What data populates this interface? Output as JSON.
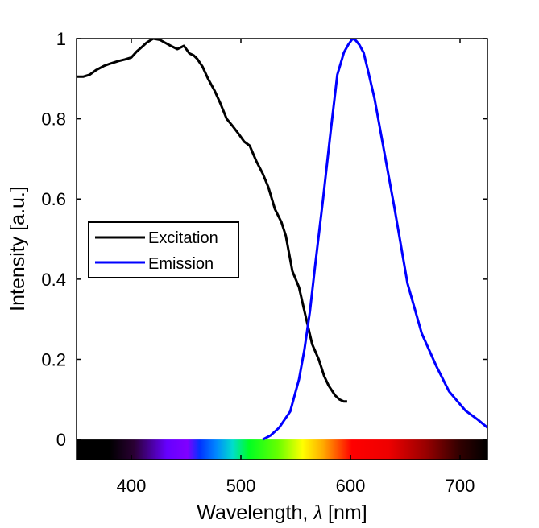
{
  "chart_data": {
    "type": "line",
    "title": "",
    "xlabel_main": "Wavelength, ",
    "xlabel_symbol": "λ",
    "xlabel_unit": " [nm]",
    "ylabel": "Intensity [a.u.]",
    "xlim": [
      350,
      725
    ],
    "ylim": [
      -0.05,
      1
    ],
    "xticks": [
      400,
      500,
      600,
      700
    ],
    "yticks": [
      0,
      0.2,
      0.4,
      0.6,
      0.8,
      1
    ],
    "ytick_labels": [
      "0",
      "0.2",
      "0.4",
      "0.6",
      "0.8",
      "1"
    ],
    "spectrum_band": {
      "ymin": -0.05,
      "ymax": 0.0
    },
    "legend": {
      "position": "middle-left"
    },
    "series": [
      {
        "name": "Excitation",
        "color": "#000000",
        "x": [
          350,
          356,
          362,
          368,
          375,
          381,
          388,
          394,
          400,
          405,
          410,
          414,
          420,
          426,
          430,
          436,
          442,
          448,
          453,
          457,
          460,
          465,
          470,
          476,
          481,
          487,
          493,
          498,
          503,
          508,
          514,
          520,
          525,
          531,
          537,
          541,
          547,
          553,
          558,
          565,
          571,
          576,
          580,
          586,
          590,
          594,
          597
        ],
        "values": [
          0.905,
          0.905,
          0.91,
          0.922,
          0.932,
          0.938,
          0.944,
          0.948,
          0.953,
          0.968,
          0.98,
          0.99,
          1.0,
          0.997,
          0.991,
          0.982,
          0.974,
          0.982,
          0.963,
          0.958,
          0.95,
          0.93,
          0.9,
          0.87,
          0.84,
          0.8,
          0.78,
          0.762,
          0.743,
          0.733,
          0.695,
          0.663,
          0.63,
          0.575,
          0.542,
          0.508,
          0.42,
          0.38,
          0.32,
          0.238,
          0.2,
          0.158,
          0.135,
          0.11,
          0.1,
          0.095,
          0.095
        ]
      },
      {
        "name": "Emission",
        "color": "#0000ff",
        "x": [
          520,
          527,
          535,
          545,
          553,
          558,
          563,
          568,
          575,
          582,
          588,
          594,
          598,
          602,
          605,
          608,
          612,
          616,
          622,
          630,
          640,
          652,
          665,
          678,
          690,
          705,
          716,
          725
        ],
        "values": [
          0.0,
          0.01,
          0.03,
          0.07,
          0.15,
          0.225,
          0.32,
          0.44,
          0.6,
          0.77,
          0.91,
          0.965,
          0.985,
          1.0,
          0.995,
          0.985,
          0.965,
          0.92,
          0.85,
          0.73,
          0.58,
          0.39,
          0.265,
          0.185,
          0.12,
          0.072,
          0.05,
          0.03
        ]
      }
    ]
  }
}
